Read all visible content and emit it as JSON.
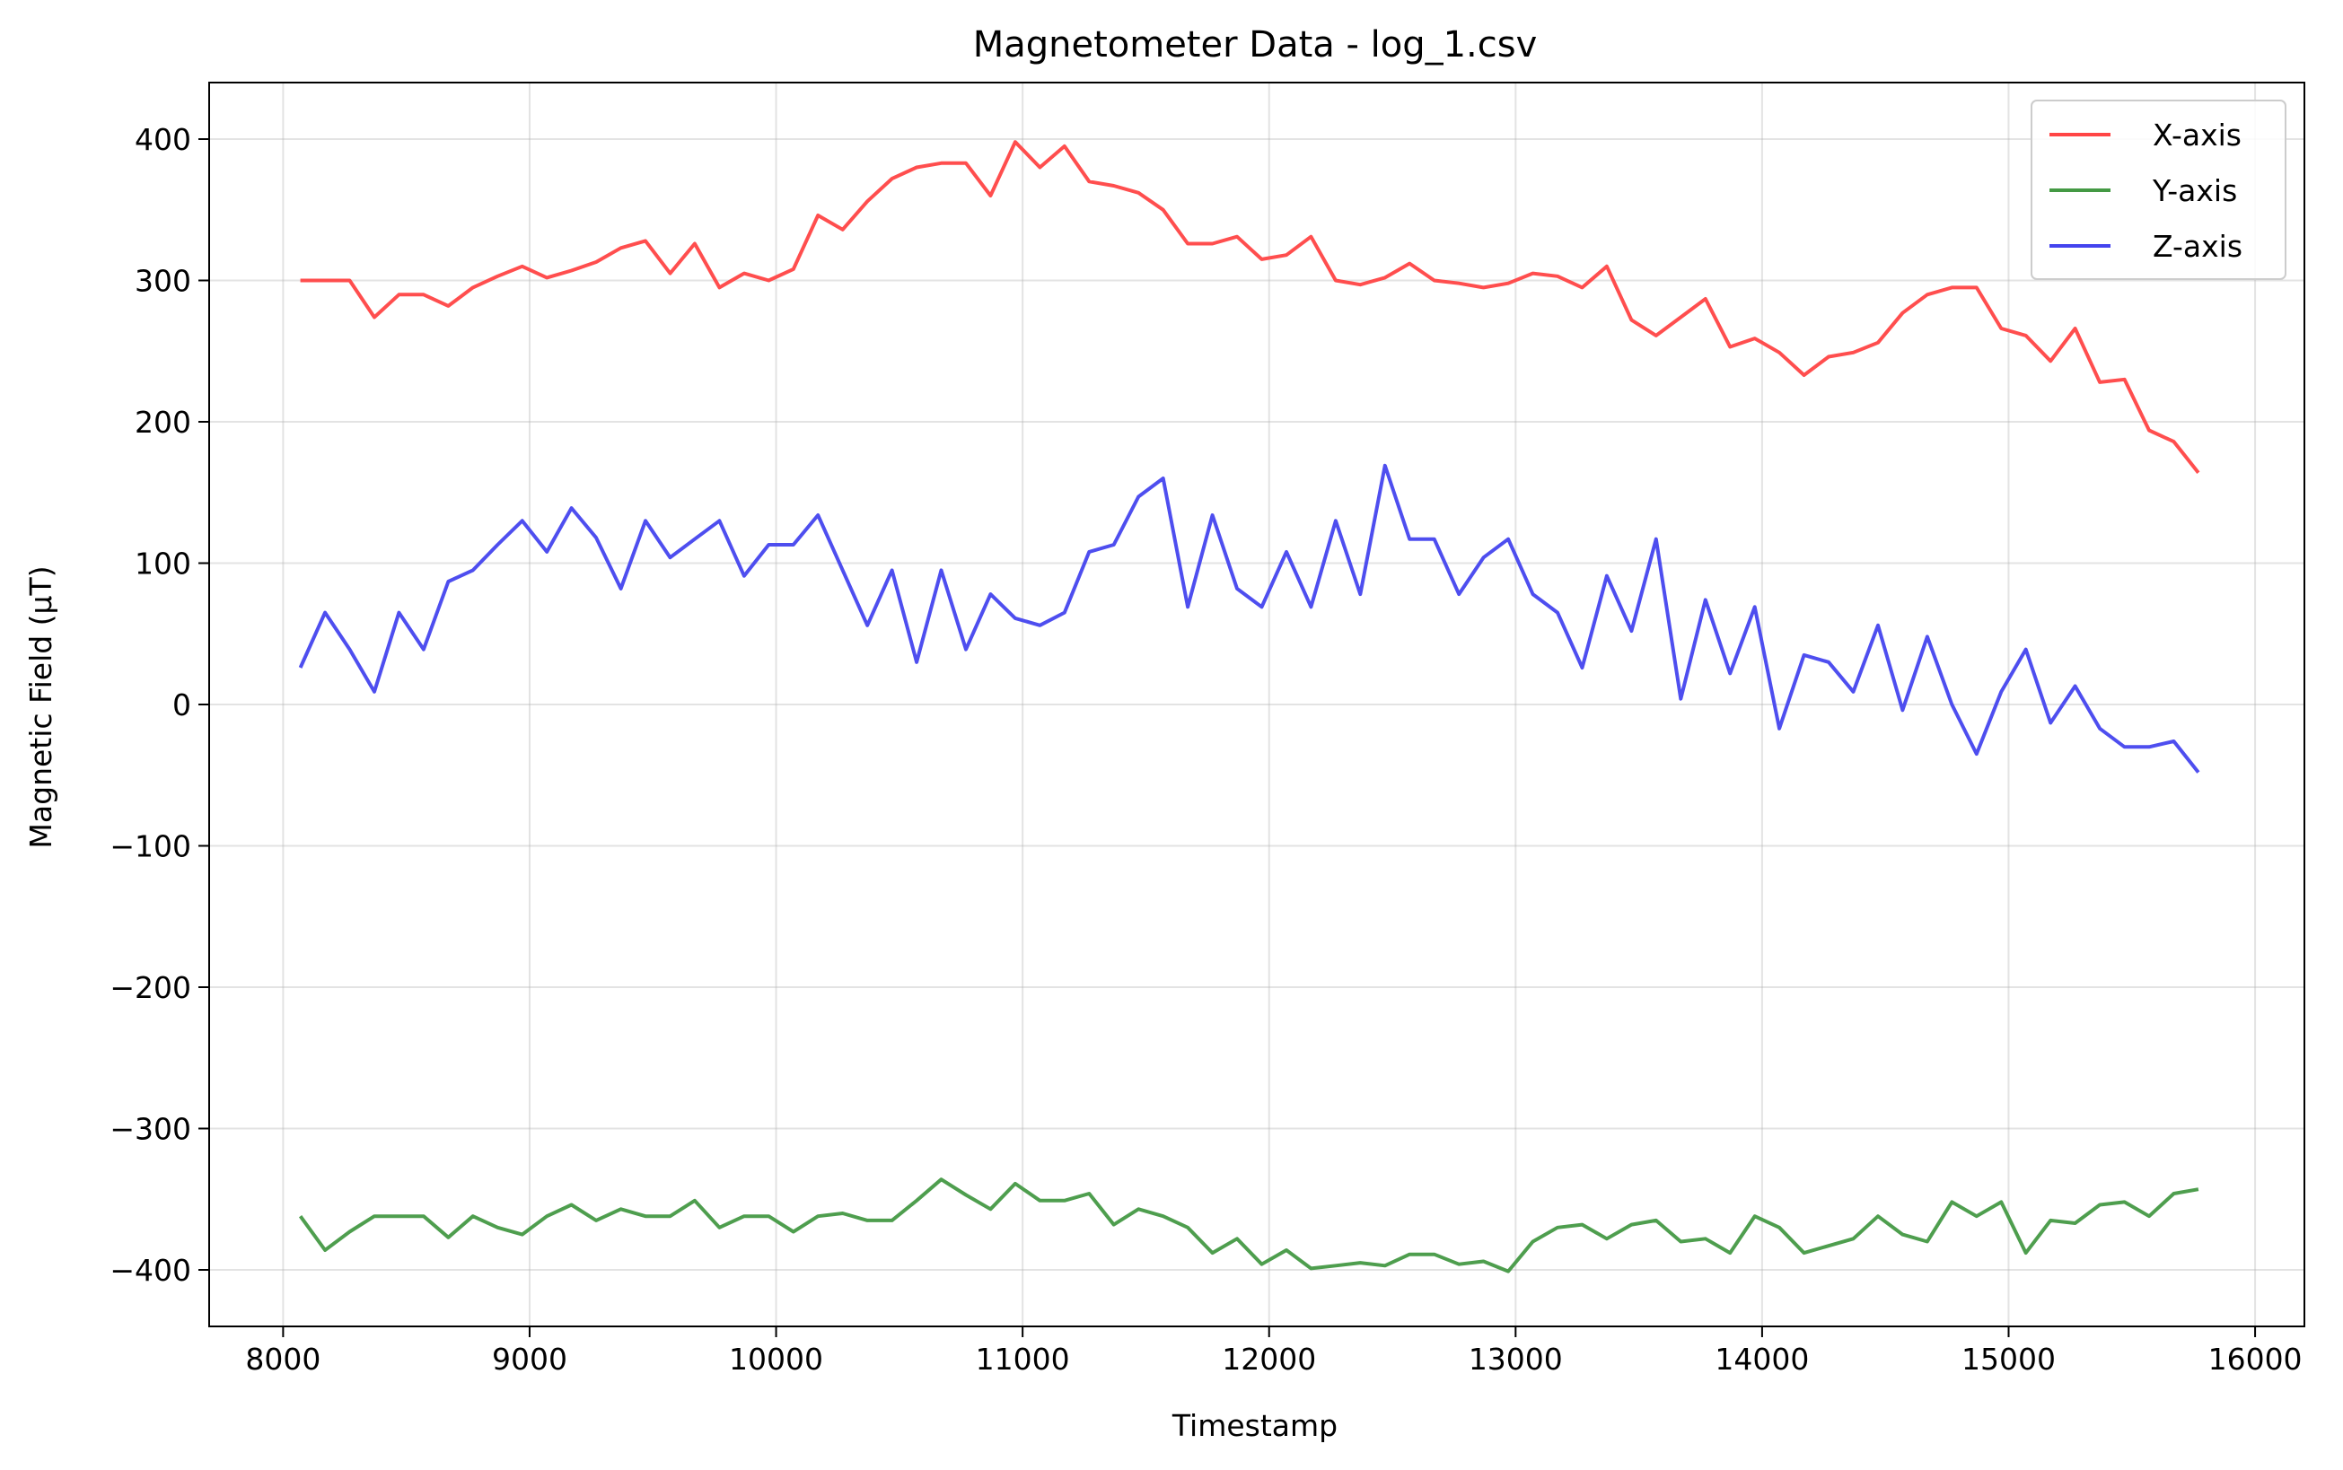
{
  "chart_data": {
    "type": "line",
    "title": "Magnetometer Data - log_1.csv",
    "xlabel": "Timestamp",
    "ylabel": "Magnetic Field (μT)",
    "xlim": [
      7700,
      16200
    ],
    "ylim": [
      -440,
      440
    ],
    "xticks": [
      8000,
      9000,
      10000,
      11000,
      12000,
      13000,
      14000,
      15000,
      16000
    ],
    "xtick_labels": [
      "8000",
      "9000",
      "10000",
      "11000",
      "12000",
      "13000",
      "14000",
      "15000",
      "16000"
    ],
    "yticks": [
      -400,
      -300,
      -200,
      -100,
      0,
      100,
      200,
      300,
      400
    ],
    "ytick_labels": [
      "−400",
      "−300",
      "−200",
      "−100",
      "0",
      "100",
      "200",
      "300",
      "400"
    ],
    "grid": true,
    "legend_position": "top-right",
    "x": [
      8070,
      8170,
      8270,
      8370,
      8470,
      8570,
      8670,
      8770,
      8870,
      8970,
      9070,
      9170,
      9270,
      9370,
      9470,
      9570,
      9670,
      9770,
      9870,
      9970,
      10070,
      10170,
      10270,
      10370,
      10470,
      10570,
      10670,
      10770,
      10870,
      10970,
      11070,
      11170,
      11270,
      11370,
      11470,
      11570,
      11670,
      11770,
      11870,
      11970,
      12070,
      12170,
      12270,
      12370,
      12470,
      12570,
      12670,
      12770,
      12870,
      12970,
      13070,
      13170,
      13270,
      13370,
      13470,
      13570,
      13670,
      13770,
      13870,
      13970,
      14070,
      14170,
      14270,
      14370,
      14470,
      14570,
      14670,
      14770,
      14870,
      14970,
      15070,
      15170,
      15270,
      15370,
      15470,
      15570,
      15670,
      15770
    ],
    "series": [
      {
        "name": "X-axis",
        "color": "#ff4444",
        "values": [
          300,
          300,
          300,
          274,
          290,
          290,
          282,
          295,
          303,
          310,
          302,
          307,
          313,
          323,
          328,
          305,
          326,
          295,
          305,
          300,
          308,
          346,
          336,
          356,
          372,
          380,
          383,
          383,
          360,
          398,
          380,
          395,
          370,
          367,
          362,
          350,
          326,
          326,
          331,
          315,
          318,
          331,
          300,
          297,
          302,
          312,
          300,
          298,
          295,
          298,
          305,
          303,
          295,
          310,
          272,
          261,
          274,
          287,
          253,
          259,
          249,
          233,
          246,
          249,
          256,
          277,
          290,
          295,
          295,
          266,
          261,
          243,
          266,
          228,
          230,
          194,
          186,
          164
        ]
      },
      {
        "name": "Y-axis",
        "color": "#449944",
        "values": [
          -362,
          -386,
          -373,
          -362,
          -362,
          -362,
          -377,
          -362,
          -370,
          -375,
          -362,
          -354,
          -365,
          -357,
          -362,
          -362,
          -351,
          -370,
          -362,
          -362,
          -373,
          -362,
          -360,
          -365,
          -365,
          -351,
          -336,
          -347,
          -357,
          -339,
          -351,
          -351,
          -346,
          -368,
          -357,
          -362,
          -370,
          -388,
          -378,
          -396,
          -386,
          -399,
          -397,
          -395,
          -397,
          -389,
          -389,
          -396,
          -394,
          -401,
          -380,
          -370,
          -368,
          -378,
          -368,
          -365,
          -380,
          -378,
          -388,
          -362,
          -370,
          -388,
          -383,
          -378,
          -362,
          -375,
          -380,
          -352,
          -362,
          -352,
          -388,
          -365,
          -367,
          -354,
          -352,
          -362,
          -346,
          -343
        ]
      },
      {
        "name": "Z-axis",
        "color": "#4444ee",
        "values": [
          26,
          65,
          39,
          9,
          65,
          39,
          87,
          95,
          113,
          130,
          108,
          139,
          118,
          82,
          130,
          104,
          117,
          130,
          91,
          113,
          113,
          134,
          95,
          56,
          95,
          30,
          95,
          39,
          78,
          61,
          56,
          65,
          108,
          113,
          147,
          160,
          69,
          134,
          82,
          69,
          108,
          69,
          130,
          78,
          169,
          117,
          117,
          78,
          104,
          117,
          78,
          65,
          26,
          91,
          52,
          117,
          4,
          74,
          22,
          69,
          -17,
          35,
          30,
          9,
          56,
          -4,
          48,
          0,
          -35,
          9,
          39,
          -13,
          13,
          -17,
          -30,
          -30,
          -26,
          -48
        ]
      }
    ]
  }
}
